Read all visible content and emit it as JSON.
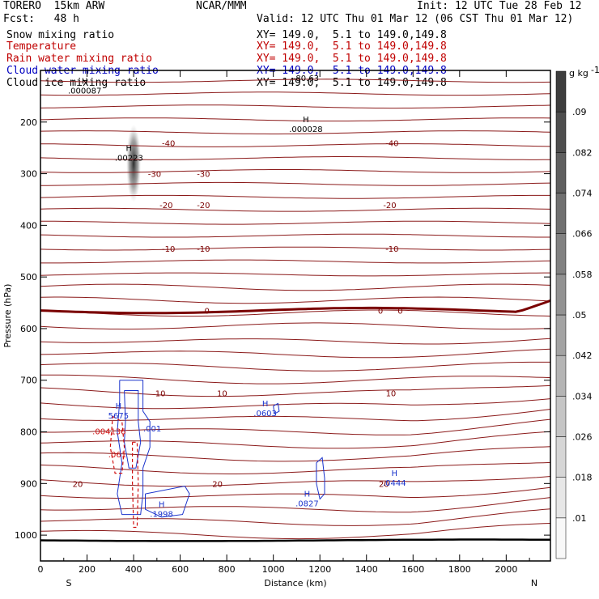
{
  "header": {
    "model": "TORERO  15km ARW",
    "center": "NCAR/MMM",
    "init": "Init: 12 UTC Tue 28 Feb 12",
    "fcst": "Fcst:   48 h",
    "valid": "Valid: 12 UTC Thu 01 Mar 12 (06 CST Thu 01 Mar 12)",
    "fields": [
      {
        "name": "Snow mixing ratio",
        "xy": "XY= 149.0,  5.1 to 149.0,149.8",
        "color": "#000000"
      },
      {
        "name": "Temperature",
        "xy": "XY= 149.0,  5.1 to 149.0,149.8",
        "color": "#c00000"
      },
      {
        "name": "Rain water mixing ratio",
        "xy": "XY= 149.0,  5.1 to 149.0,149.8",
        "color": "#c00000"
      },
      {
        "name": "Cloud water mixing ratio",
        "xy": "XY= 149.0,  5.1 to 149.0,149.8",
        "color": "#0000c0"
      },
      {
        "name": "Cloud ice mixing ratio",
        "xy": "XY= 149.0,  5.1 to 149.0,149.8",
        "color": "#000000"
      }
    ]
  },
  "chart_data": {
    "type": "cross-section",
    "xlabel": "Distance (km)",
    "ylabel": "Pressure (hPa)",
    "xlim": [
      0,
      2190
    ],
    "ylim": [
      1050,
      100
    ],
    "xticks": [
      "0",
      "200",
      "400",
      "600",
      "800",
      "1000",
      "1200",
      "1400",
      "1600",
      "1800",
      "2000"
    ],
    "yticks": [
      "200",
      "300",
      "400",
      "500",
      "600",
      "700",
      "800",
      "900",
      "1000"
    ],
    "x_end_labels": {
      "left": "S",
      "right": "N"
    },
    "colorbar": {
      "unit": "g kg",
      "unit_exp": "-1",
      "labels": [
        ".01",
        ".018",
        ".026",
        ".034",
        ".042",
        ".05",
        ".058",
        ".066",
        ".074",
        ".082",
        ".09"
      ]
    },
    "temperature_contours": [
      {
        "label": "-40",
        "p": 240,
        "label_x": [
          550,
          1510
        ]
      },
      {
        "label": "-30",
        "p": 300,
        "label_x": [
          490,
          700
        ]
      },
      {
        "label": "-20",
        "p": 360,
        "label_x": [
          540,
          700,
          1500
        ]
      },
      {
        "label": "-10",
        "p": 445,
        "label_x": [
          550,
          700,
          1510
        ]
      },
      {
        "label": "0",
        "p": 565,
        "label_x": [
          715,
          1460,
          1545
        ]
      },
      {
        "label": "10",
        "p": 725,
        "label_x": [
          780,
          515,
          1505
        ]
      },
      {
        "label": "20",
        "p": 900,
        "label_x": [
          760,
          1475,
          160
        ]
      }
    ],
    "annotations": [
      {
        "marker": "H",
        "value": ".000087",
        "x": 190,
        "p": 135
      },
      {
        "marker": "H",
        "value": ".00223",
        "x": 380,
        "p": 265
      },
      {
        "marker": "H",
        "value": ".000028",
        "x": 1140,
        "p": 210
      },
      {
        "marker": "H",
        "value": "5675",
        "x": 335,
        "p": 765
      },
      {
        "marker": "",
        "value": ".004136",
        "x": 295,
        "p": 795
      },
      {
        "marker": "",
        "value": ".001",
        "x": 480,
        "p": 790
      },
      {
        "marker": "",
        "value": ".061",
        "x": 330,
        "p": 840
      },
      {
        "marker": "H",
        "value": ".0603",
        "x": 965,
        "p": 760
      },
      {
        "marker": "H",
        "value": ".1998",
        "x": 520,
        "p": 955
      },
      {
        "marker": "H",
        "value": ".0827",
        "x": 1145,
        "p": 935
      },
      {
        "marker": "H",
        "value": ".0444",
        "x": 1520,
        "p": 895
      }
    ],
    "top_edge_label": "-80.63"
  }
}
